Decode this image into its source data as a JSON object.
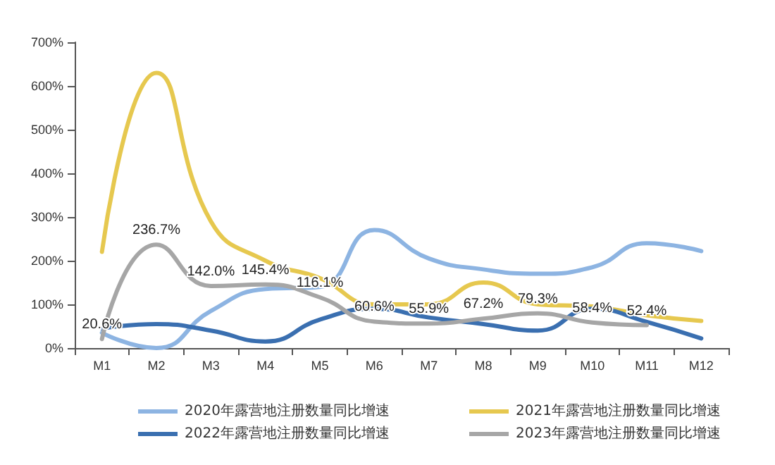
{
  "chart_data": {
    "type": "line",
    "categories": [
      "M1",
      "M2",
      "M3",
      "M4",
      "M5",
      "M6",
      "M7",
      "M8",
      "M9",
      "M10",
      "M11",
      "M12"
    ],
    "ylim": [
      0,
      700
    ],
    "yticks": [
      {
        "value": 0,
        "label": "0%"
      },
      {
        "value": 100,
        "label": "100%"
      },
      {
        "value": 200,
        "label": "200%"
      },
      {
        "value": 300,
        "label": "300%"
      },
      {
        "value": 400,
        "label": "400%"
      },
      {
        "value": 500,
        "label": "500%"
      },
      {
        "value": 600,
        "label": "600%"
      },
      {
        "value": 700,
        "label": "700%"
      }
    ],
    "grid": false,
    "legend": "bottom",
    "marker": "none",
    "line_style": "solid",
    "series": [
      {
        "name": "2020年露营地注册数量同比增速",
        "color": "#8db4e2",
        "values": [
          35,
          0,
          85,
          135,
          140,
          270,
          205,
          180,
          170,
          185,
          240,
          222
        ]
      },
      {
        "name": "2021年露营地注册数量同比增速",
        "color": "#e6c84f",
        "values": [
          220,
          630,
          290,
          200,
          160,
          100,
          100,
          150,
          100,
          95,
          75,
          62
        ]
      },
      {
        "name": "2022年露营地注册数量同比增速",
        "color": "#3a6fb0",
        "values": [
          45,
          55,
          40,
          15,
          65,
          90,
          70,
          55,
          40,
          90,
          60,
          22
        ]
      },
      {
        "name": "2023年露营地注册数量同比增速",
        "color": "#a6a6a6",
        "values": [
          20.6,
          236.7,
          142.0,
          145.4,
          116.1,
          60.6,
          55.9,
          67.2,
          79.3,
          58.4,
          52.4,
          null
        ],
        "value_labels": [
          "20.6%",
          "236.7%",
          "142.0%",
          "145.4%",
          "116.1%",
          "60.6%",
          "55.9%",
          "67.2%",
          "79.3%",
          "58.4%",
          "52.4%",
          null
        ]
      }
    ]
  }
}
